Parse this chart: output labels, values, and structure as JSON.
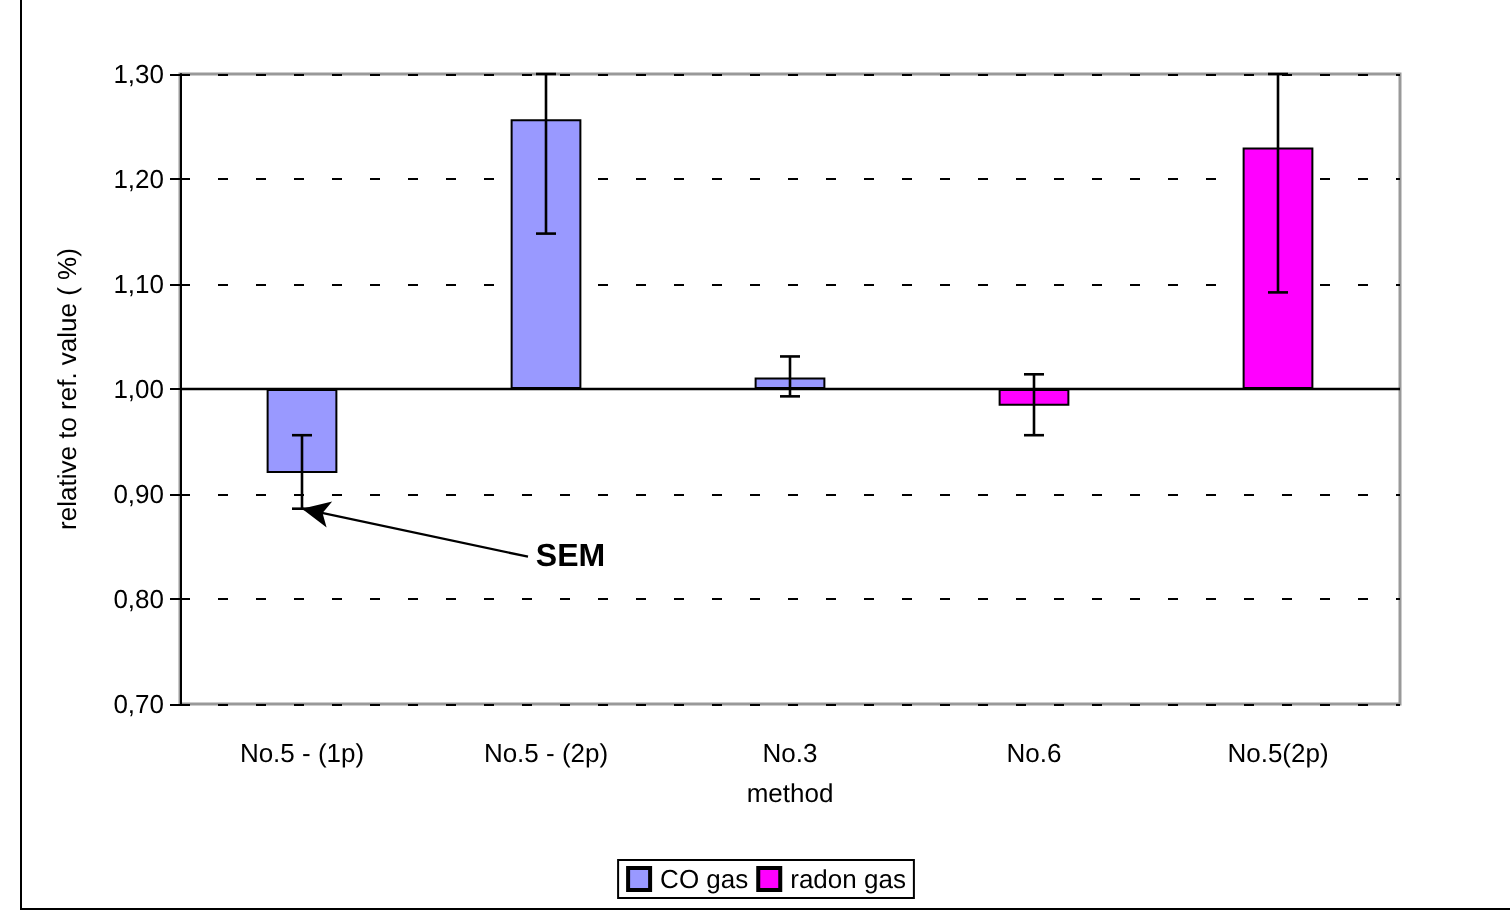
{
  "chart_data": {
    "type": "bar",
    "xlabel": "method",
    "ylabel": "relative to ref. value ( %)",
    "categories": [
      "No.5 - (1p)",
      "No.5 - (2p)",
      "No.3",
      "No.6",
      "No.5(2p)"
    ],
    "series": [
      {
        "name": "CO gas",
        "color": "#9999ff",
        "base": [
          1.0,
          1.0,
          1.0,
          null,
          null
        ],
        "values": [
          -0.08,
          0.257,
          0.011,
          null,
          null
        ],
        "errors": [
          [
            0.886,
            0.956
          ],
          [
            1.148,
            1.3
          ],
          [
            0.993,
            1.031
          ],
          null,
          null
        ]
      },
      {
        "name": "radon gas",
        "color": "#ff00ff",
        "base": [
          null,
          null,
          null,
          1.0,
          1.0
        ],
        "values": [
          null,
          null,
          null,
          -0.016,
          0.23
        ],
        "errors": [
          null,
          null,
          null,
          [
            0.956,
            1.014
          ],
          [
            1.092,
            1.3
          ]
        ]
      }
    ],
    "ylim": [
      0.7,
      1.3
    ],
    "yticks": [
      {
        "value": 0.7,
        "label": "0,70"
      },
      {
        "value": 0.8,
        "label": "0,80"
      },
      {
        "value": 0.9,
        "label": "0,90"
      },
      {
        "value": 1.0,
        "label": "1,00"
      },
      {
        "value": 1.1,
        "label": "1,10"
      },
      {
        "value": 1.2,
        "label": "1,20"
      },
      {
        "value": 1.3,
        "label": "1,30"
      }
    ],
    "ref_lines": [
      {
        "axis": "y",
        "value": 1.0,
        "color": "#000000",
        "line_style": "solid"
      }
    ],
    "annotations": [
      {
        "text": "SEM",
        "x": "No.5 - (1p)",
        "y": 0.886
      }
    ],
    "grid": "y",
    "legend": "bottom"
  }
}
